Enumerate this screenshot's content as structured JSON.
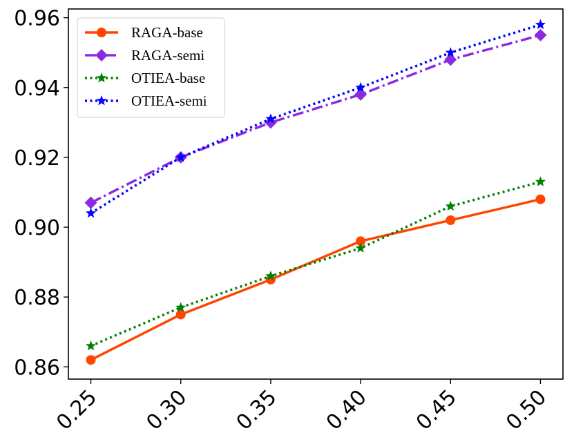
{
  "chart_data": {
    "type": "line",
    "title": "",
    "xlabel": "",
    "ylabel": "",
    "x": [
      0.25,
      0.3,
      0.35,
      0.4,
      0.45,
      0.5
    ],
    "x_tick_labels": [
      "0.25",
      "0.30",
      "0.35",
      "0.40",
      "0.45",
      "0.50"
    ],
    "y_ticks": [
      0.86,
      0.88,
      0.9,
      0.92,
      0.94,
      0.96
    ],
    "y_tick_labels": [
      "0.86",
      "0.88",
      "0.90",
      "0.92",
      "0.94",
      "0.96"
    ],
    "ylim": [
      0.8565,
      0.9625
    ],
    "xlim": [
      0.2375,
      0.5125
    ],
    "grid": false,
    "legend_position": "top-left",
    "series": [
      {
        "name": "RAGA-base",
        "values": [
          0.862,
          0.875,
          0.885,
          0.896,
          0.902,
          0.908
        ],
        "color": "#FF4500",
        "line_style": "solid",
        "marker": "circle"
      },
      {
        "name": "RAGA-semi",
        "values": [
          0.907,
          0.92,
          0.93,
          0.938,
          0.948,
          0.955
        ],
        "color": "#8A2BE2",
        "line_style": "dashdot",
        "marker": "diamond"
      },
      {
        "name": "OTIEA-base",
        "values": [
          0.866,
          0.877,
          0.886,
          0.894,
          0.906,
          0.913
        ],
        "color": "#008000",
        "line_style": "dotted",
        "marker": "star"
      },
      {
        "name": "OTIEA-semi",
        "values": [
          0.904,
          0.92,
          0.931,
          0.94,
          0.95,
          0.958
        ],
        "color": "#0000FF",
        "line_style": "dotted",
        "marker": "star"
      }
    ]
  }
}
